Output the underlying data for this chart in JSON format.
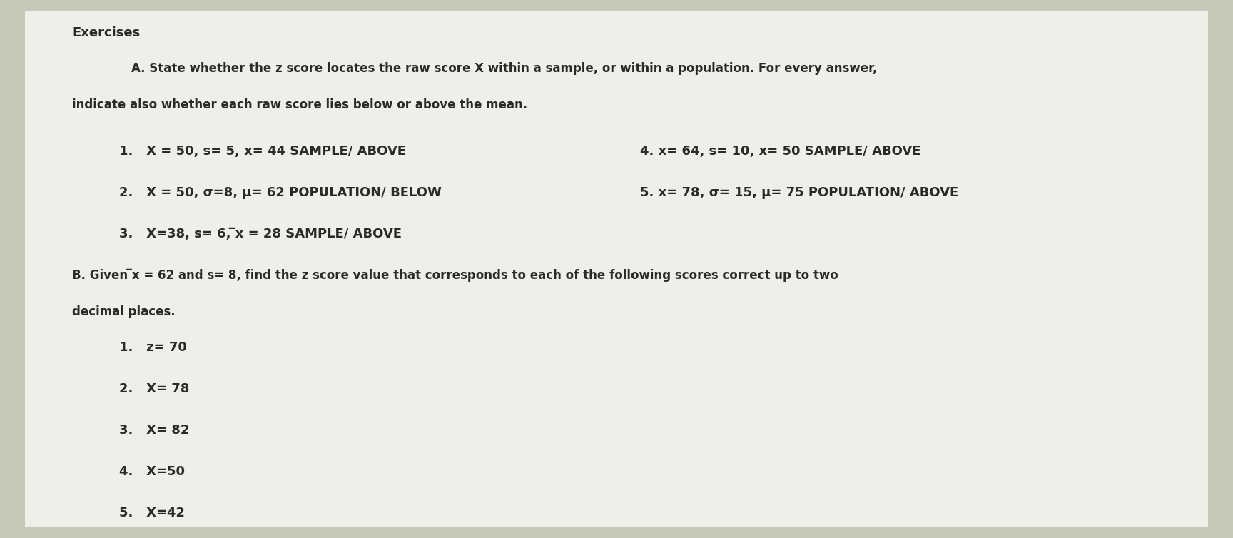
{
  "bg_color": "#c8c8b8",
  "paper_color": "#efefea",
  "title": "Exercises",
  "section_a_header": "A. State whether the z score locates the raw score X within a sample, or within a population. For every answer,",
  "section_a_header2": "indicate also whether each raw score lies below or above the mean.",
  "items_left": [
    "1.   X = 50, s= 5, x= 44 SAMPLE/ ABOVE",
    "2.   X = 50, σ=8, μ= 62 POPULATION/ BELOW",
    "3.   X=38, s= 6, ̅x = 28 SAMPLE/ ABOVE"
  ],
  "items_right": [
    "4. x= 64, s= 10, x= 50 SAMPLE/ ABOVE",
    "5. x= 78, σ= 15, μ= 75 POPULATION/ ABOVE"
  ],
  "section_b_header": "B. Given ̅x = 62 and s= 8, find the z score value that corresponds to each of the following scores correct up to two",
  "section_b_header2": "decimal places.",
  "items_b": [
    "1.   z= 70",
    "2.   X= 78",
    "3.   X= 82",
    "4.   X=50",
    "5.   X=42"
  ],
  "font_size_title": 13,
  "font_size_header": 12,
  "font_size_item": 13
}
